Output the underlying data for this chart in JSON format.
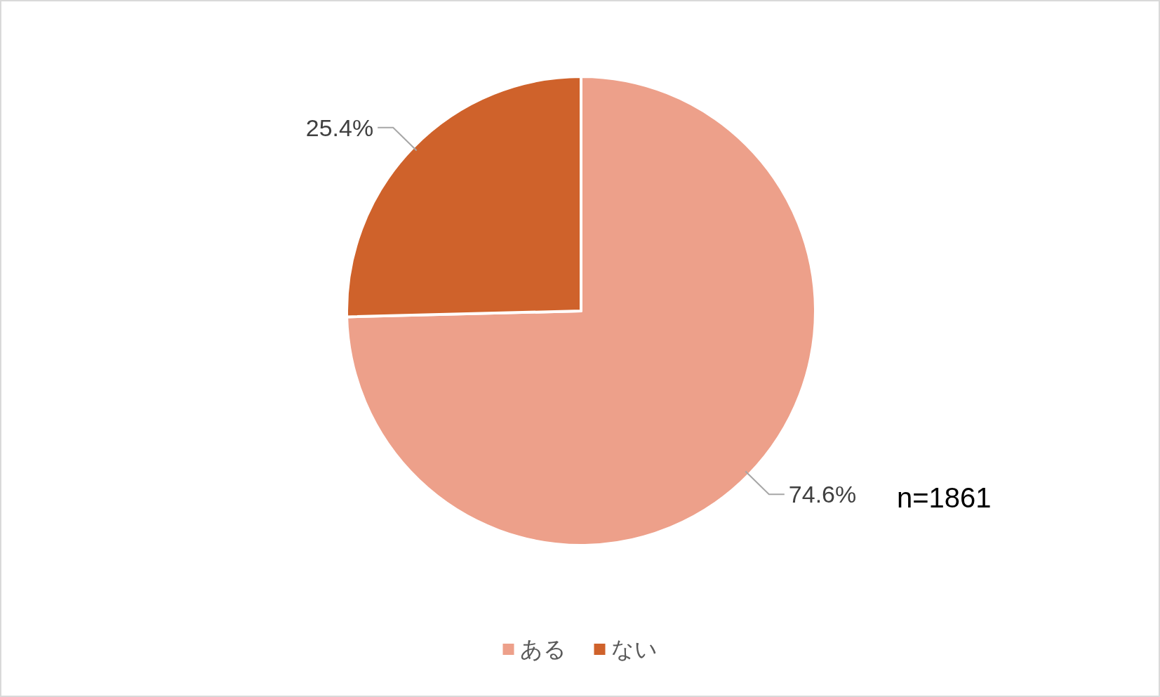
{
  "chart_data": {
    "type": "pie",
    "categories": [
      "ある",
      "ない"
    ],
    "values": [
      74.6,
      25.4
    ],
    "colors": [
      "#eda08a",
      "#cf622b"
    ],
    "value_labels": [
      "74.6%",
      "25.4%"
    ],
    "annotations": [
      "n=1861"
    ],
    "legend": "bottom"
  }
}
